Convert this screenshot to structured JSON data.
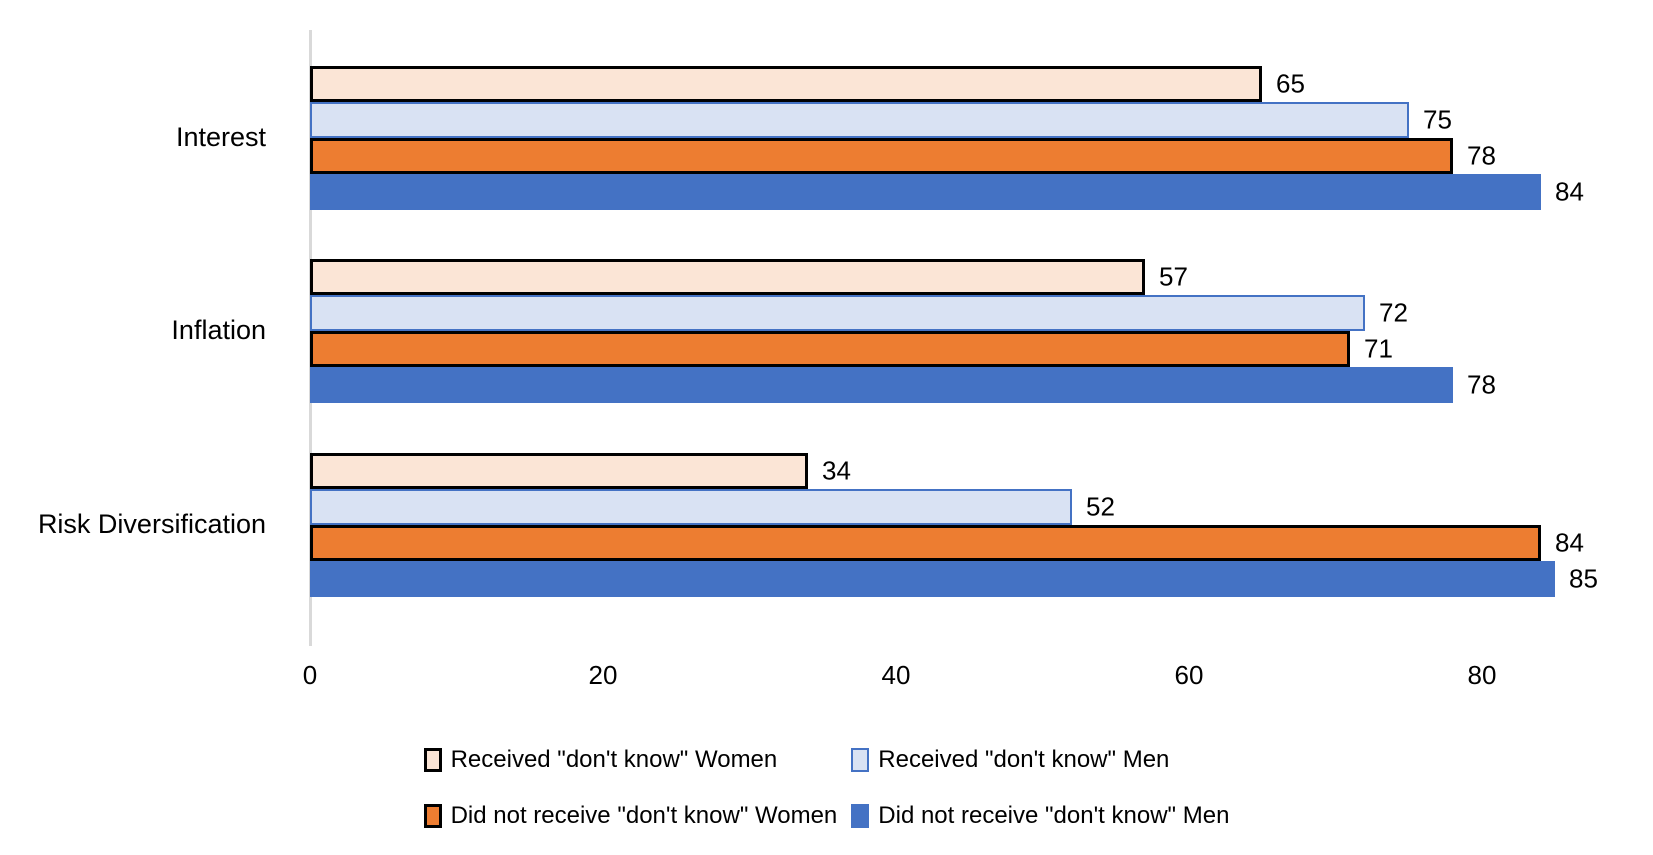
{
  "chart_data": {
    "type": "bar",
    "orientation": "horizontal",
    "title": "",
    "xlabel": "",
    "ylabel": "",
    "grid": false,
    "legend_position": "bottom",
    "categories": [
      "Interest",
      "Inflation",
      "Risk Diversification"
    ],
    "series": [
      {
        "name": "Received \"don't know\" Women",
        "values": [
          65,
          57,
          34
        ],
        "fill": "#FBE5D6",
        "border": "#000000",
        "border_px": 3
      },
      {
        "name": "Received \"don't know\" Men",
        "values": [
          75,
          72,
          52
        ],
        "fill": "#D9E2F3",
        "border": "#4472C4",
        "border_px": 2
      },
      {
        "name": "Did not receive \"don't know\" Women",
        "values": [
          78,
          71,
          84
        ],
        "fill": "#ED7D31",
        "border": "#000000",
        "border_px": 3
      },
      {
        "name": "Did not receive \"don't know\" Men",
        "values": [
          84,
          78,
          85
        ],
        "fill": "#4472C4",
        "border": "",
        "border_px": 0
      }
    ],
    "x_axis": {
      "ticks": [
        0,
        20,
        40,
        60,
        80
      ],
      "min": 0,
      "max": 85.8
    },
    "value_labels": true,
    "legend_rows": [
      [
        0,
        1
      ],
      [
        2,
        3
      ]
    ],
    "colors": {
      "axis_line": "#d9d9d9",
      "text": "#000000",
      "background": "#ffffff"
    }
  }
}
